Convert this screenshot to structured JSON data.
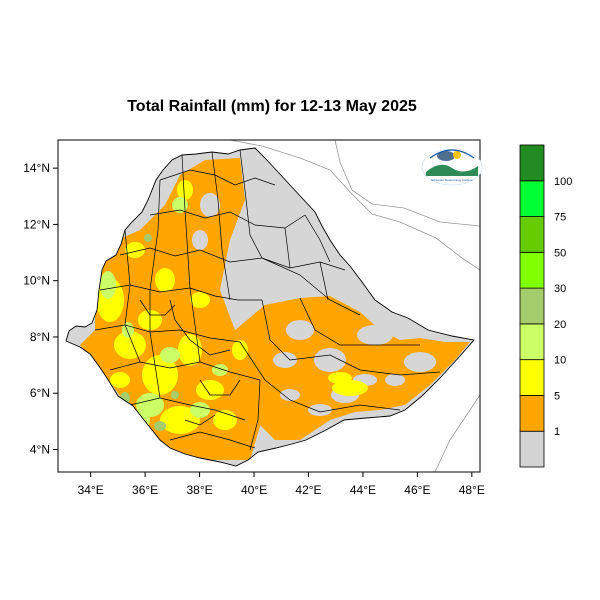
{
  "title": "Total Rainfall (mm) for 12-13 May 2025",
  "map": {
    "lon_range": [
      32.8,
      48.3
    ],
    "lat_range": [
      3.2,
      15.0
    ],
    "x_ticks": [
      "34°E",
      "36°E",
      "38°E",
      "40°E",
      "42°E",
      "44°E",
      "46°E",
      "48°E"
    ],
    "y_ticks": [
      "14°N",
      "12°N",
      "10°N",
      "8°N",
      "6°N",
      "4°N"
    ],
    "colors": {
      "background_land": "#d6d6d6",
      "outside": "#ffffff",
      "border": "#000000",
      "coast": "#999999"
    }
  },
  "legend": {
    "bins": [
      {
        "label": "1",
        "color": "#d3d3d3"
      },
      {
        "label": "5",
        "color": "#ffa500"
      },
      {
        "label": "10",
        "color": "#ffff00"
      },
      {
        "label": "20",
        "color": "#ccff66"
      },
      {
        "label": "30",
        "color": "#a4cc6a"
      },
      {
        "label": "50",
        "color": "#7fff00"
      },
      {
        "label": "75",
        "color": "#66cc00"
      },
      {
        "label": "100",
        "color": "#00ff33"
      },
      {
        "label": "",
        "color": "#228b22"
      }
    ]
  },
  "logo": {
    "text": "Ethiopian Meteorology Institute",
    "colors": [
      "#1f5ba8",
      "#2e8b57",
      "#f2c400"
    ]
  }
}
